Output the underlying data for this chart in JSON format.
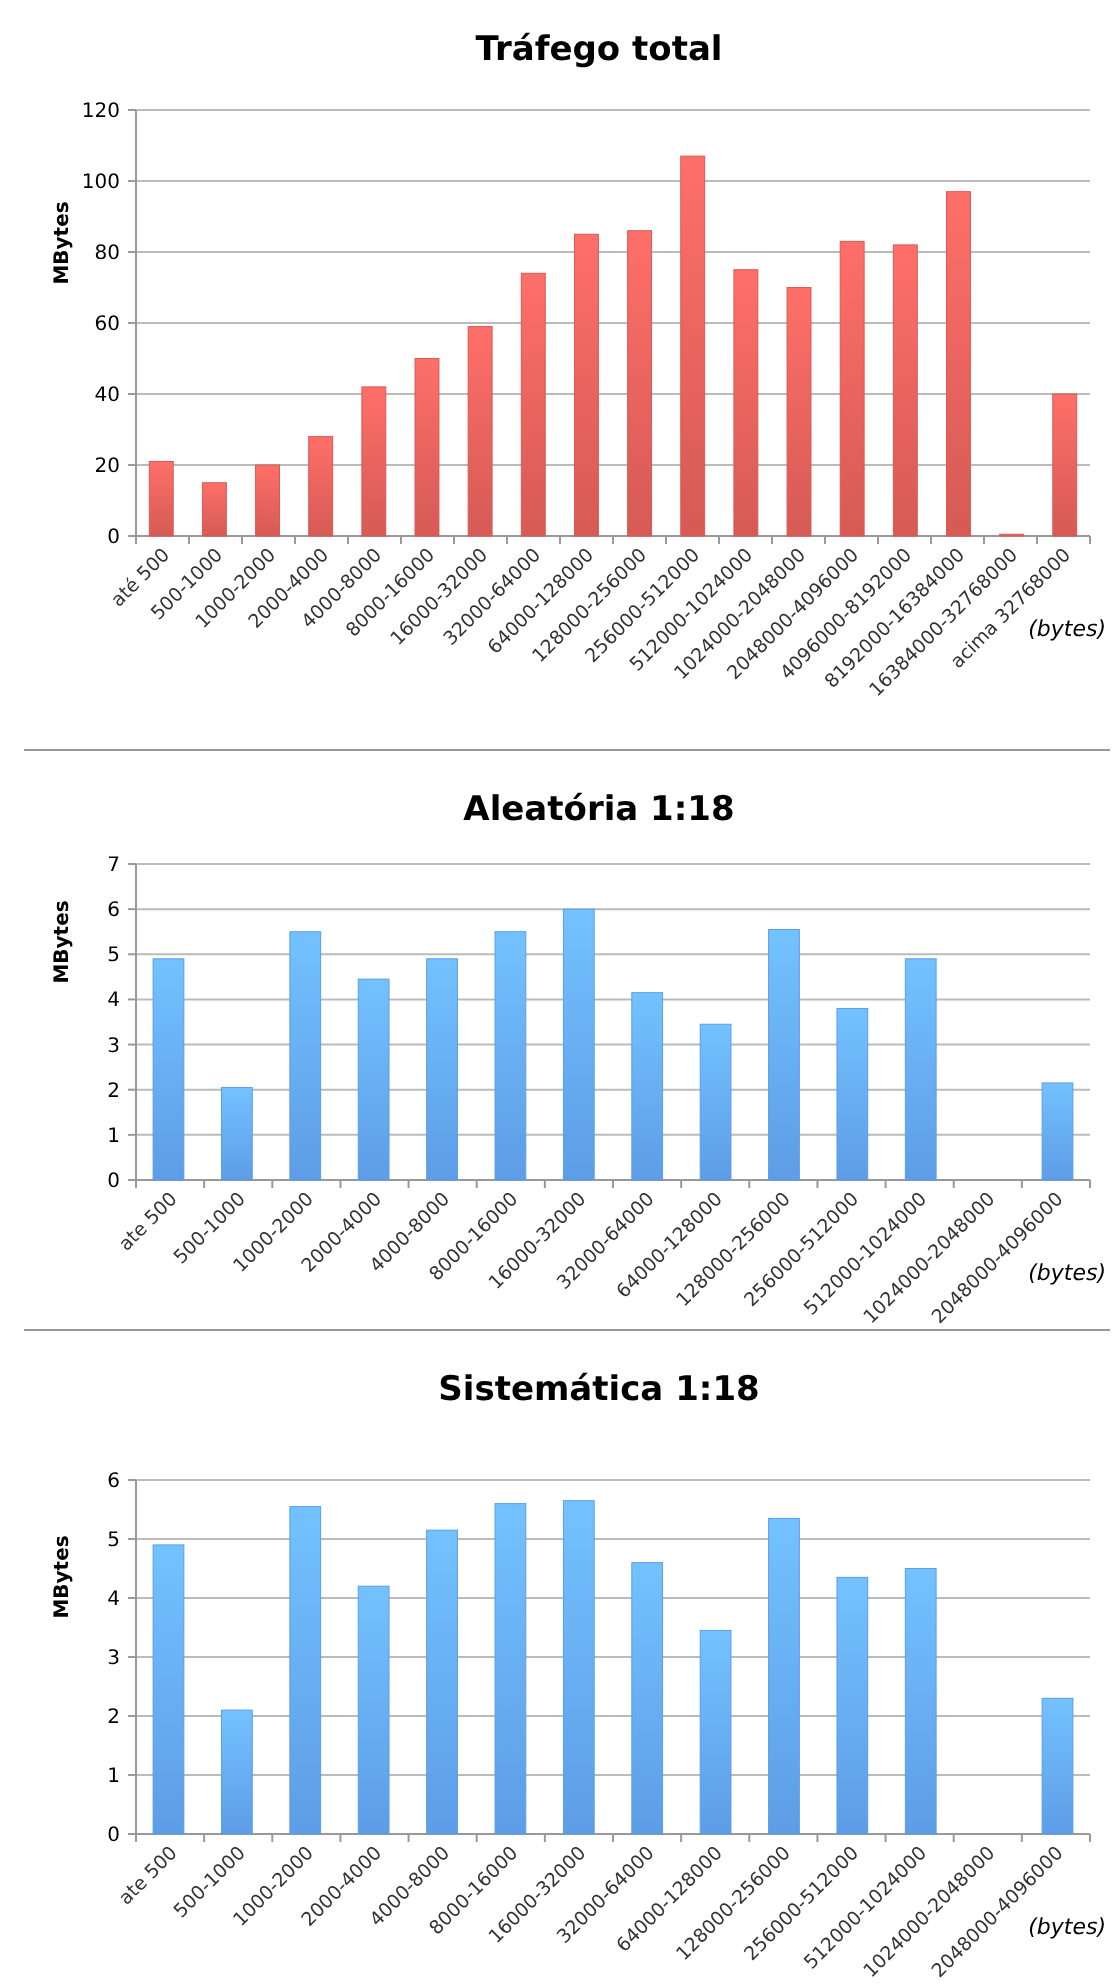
{
  "chart_data": [
    {
      "type": "bar",
      "title": "Tráfego total",
      "ylabel": "MBytes",
      "xlabel": "(bytes)",
      "categories": [
        "até 500",
        "500-1000",
        "1000-2000",
        "2000-4000",
        "4000-8000",
        "8000-16000",
        "16000-32000",
        "32000-64000",
        "64000-128000",
        "128000-256000",
        "256000-512000",
        "512000-1024000",
        "1024000-2048000",
        "2048000-4096000",
        "4096000-8192000",
        "8192000-16384000",
        "16384000-32768000",
        "acima 32768000"
      ],
      "series": [
        {
          "color": "#d65a55",
          "values": [
            21,
            15,
            20,
            28,
            42,
            50,
            59,
            74,
            85,
            86,
            107,
            75,
            70,
            83,
            82,
            97,
            0.5,
            40
          ]
        }
      ],
      "ylim": [
        0,
        120
      ],
      "yticks": [
        0,
        20,
        40,
        60,
        80,
        100,
        120
      ],
      "grid": "y"
    },
    {
      "type": "bar",
      "title": "Aleatória 1:18",
      "ylabel": "MBytes",
      "xlabel": "(bytes)",
      "categories": [
        "ate 500",
        "500-1000",
        "1000-2000",
        "2000-4000",
        "4000-8000",
        "8000-16000",
        "16000-32000",
        "32000-64000",
        "64000-128000",
        "128000-256000",
        "256000-512000",
        "512000-1024000",
        "1024000-2048000",
        "2048000-4096000"
      ],
      "series": [
        {
          "color": "#5d9de6",
          "values": [
            4.9,
            2.05,
            5.5,
            4.45,
            4.9,
            5.5,
            6.0,
            4.15,
            3.45,
            5.55,
            3.8,
            4.9,
            null,
            2.15
          ]
        }
      ],
      "ylim": [
        0,
        7
      ],
      "yticks": [
        0,
        1,
        2,
        3,
        4,
        5,
        6,
        7
      ],
      "grid": "y"
    },
    {
      "type": "bar",
      "title": "Sistemática 1:18",
      "ylabel": "MBytes",
      "xlabel": "(bytes)",
      "categories": [
        "ate 500",
        "500-1000",
        "1000-2000",
        "2000-4000",
        "4000-8000",
        "8000-16000",
        "16000-32000",
        "32000-64000",
        "64000-128000",
        "128000-256000",
        "256000-512000",
        "512000-1024000",
        "1024000-2048000",
        "2048000-4096000"
      ],
      "series": [
        {
          "color": "#5d9de6",
          "values": [
            4.9,
            2.1,
            5.55,
            4.2,
            5.15,
            5.6,
            5.65,
            4.6,
            3.45,
            5.35,
            4.35,
            4.5,
            null,
            2.3
          ]
        }
      ],
      "ylim": [
        0,
        6
      ],
      "yticks": [
        0,
        1,
        2,
        3,
        4,
        5,
        6
      ],
      "grid": "y"
    }
  ]
}
